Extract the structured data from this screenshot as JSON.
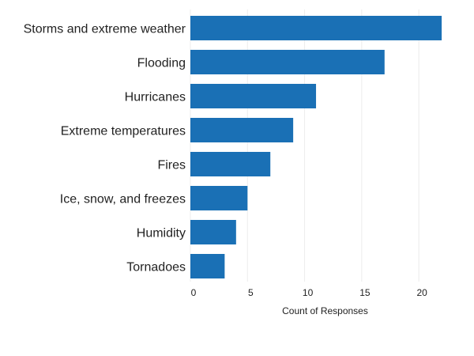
{
  "chart_data": {
    "type": "bar",
    "orientation": "horizontal",
    "categories": [
      "Storms and extreme weather",
      "Flooding",
      "Hurricanes",
      "Extreme temperatures",
      "Fires",
      "Ice, snow, and freezes",
      "Humidity",
      "Tornadoes"
    ],
    "values": [
      22,
      17,
      11,
      9,
      7,
      5,
      4,
      3
    ],
    "title": "",
    "xlabel": "Count of Responses",
    "ylabel": "",
    "xlim": [
      0,
      24
    ],
    "xticks": [
      0,
      5,
      10,
      15,
      20
    ],
    "grid": true,
    "legend": "none",
    "bar_color": "#1a70b5"
  }
}
